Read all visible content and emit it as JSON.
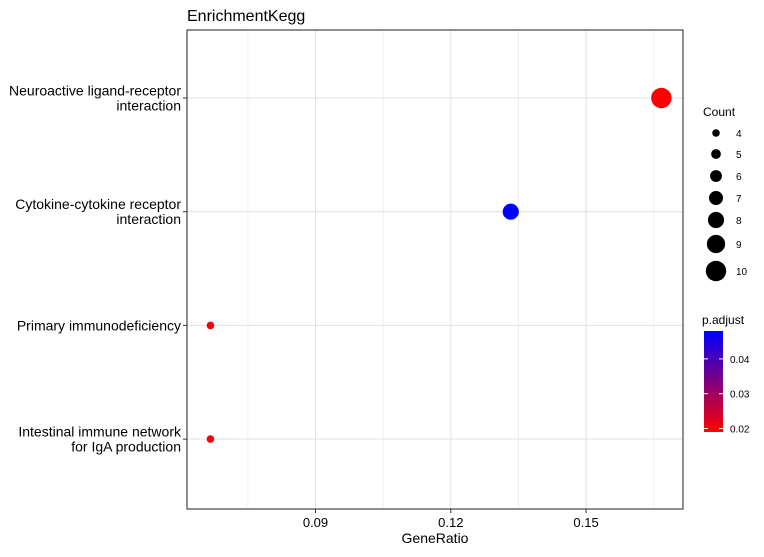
{
  "chart_data": {
    "type": "scatter",
    "title": "EnrichmentKegg",
    "xlabel": "GeneRatio",
    "ylabel": "",
    "xlim": [
      0.0615,
      0.1715
    ],
    "x_ticks": [
      0.09,
      0.12,
      0.15
    ],
    "x_tick_labels": [
      "0.09",
      "0.12",
      "0.15"
    ],
    "categories": [
      "Neuroactive ligand-receptor\ninteraction",
      "Cytokine-cytokine receptor\ninteraction",
      "Primary immunodeficiency",
      "Intestinal immune network\nfor IgA production"
    ],
    "points": [
      {
        "category_index": 0,
        "x": 0.1667,
        "count": 10,
        "p_adjust": 0.019
      },
      {
        "category_index": 1,
        "x": 0.1333,
        "count": 8,
        "p_adjust": 0.048
      },
      {
        "category_index": 2,
        "x": 0.0667,
        "count": 4,
        "p_adjust": 0.02
      },
      {
        "category_index": 3,
        "x": 0.0667,
        "count": 4,
        "p_adjust": 0.02
      }
    ],
    "size_legend": {
      "title": "Count",
      "values": [
        4,
        5,
        6,
        7,
        8,
        9,
        10
      ],
      "labels": [
        "4",
        "5",
        "6",
        "7",
        "8",
        "9",
        "10"
      ]
    },
    "color_legend": {
      "title": "p.adjust",
      "range": [
        0.019,
        0.048
      ],
      "ticks": [
        0.02,
        0.03,
        0.04
      ],
      "tick_labels": [
        "0.02",
        "0.03",
        "0.04"
      ],
      "low_color": "#ff0000",
      "high_color": "#0000ff"
    },
    "grid": true,
    "legend_position": "right"
  }
}
